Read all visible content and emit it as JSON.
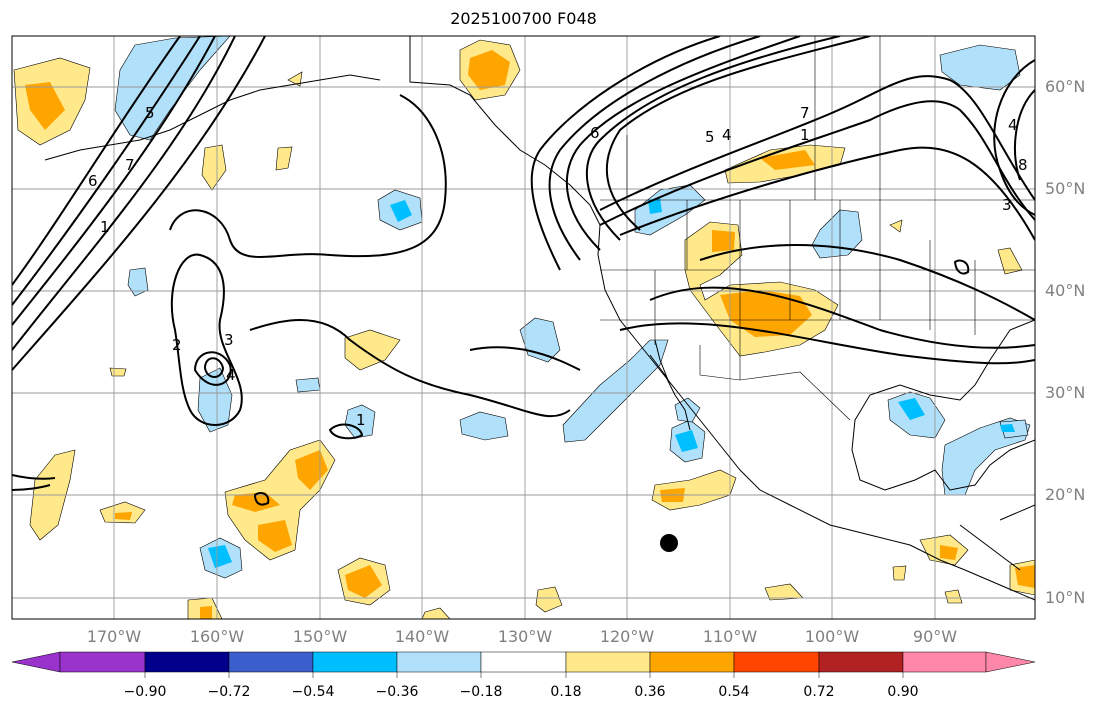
{
  "title": "2025100700 F048",
  "map": {
    "latitude_labels": [
      "60°N",
      "50°N",
      "40°N",
      "30°N",
      "20°N",
      "10°N"
    ],
    "longitude_labels": [
      "170°W",
      "160°W",
      "150°W",
      "140°W",
      "130°W",
      "120°W",
      "110°W",
      "100°W",
      "90°W"
    ],
    "contour_labels": [
      "6",
      "1",
      "5",
      "7",
      "4",
      "2",
      "3",
      "1",
      "6",
      "5",
      "4",
      "1",
      "7",
      "4",
      "8",
      "3"
    ],
    "marker": "filled-circle"
  },
  "colorbar": {
    "tick_labels": [
      "−0.90",
      "−0.72",
      "−0.54",
      "−0.36",
      "−0.18",
      "0.18",
      "0.36",
      "0.54",
      "0.72",
      "0.90"
    ],
    "colors": [
      "#9933cc",
      "#00008b",
      "#3a5fcd",
      "#00bfff",
      "#b0e0fa",
      "#ffffff",
      "#ffe98a",
      "#ffa500",
      "#ff4500",
      "#b22222",
      "#ff88aa"
    ]
  }
}
